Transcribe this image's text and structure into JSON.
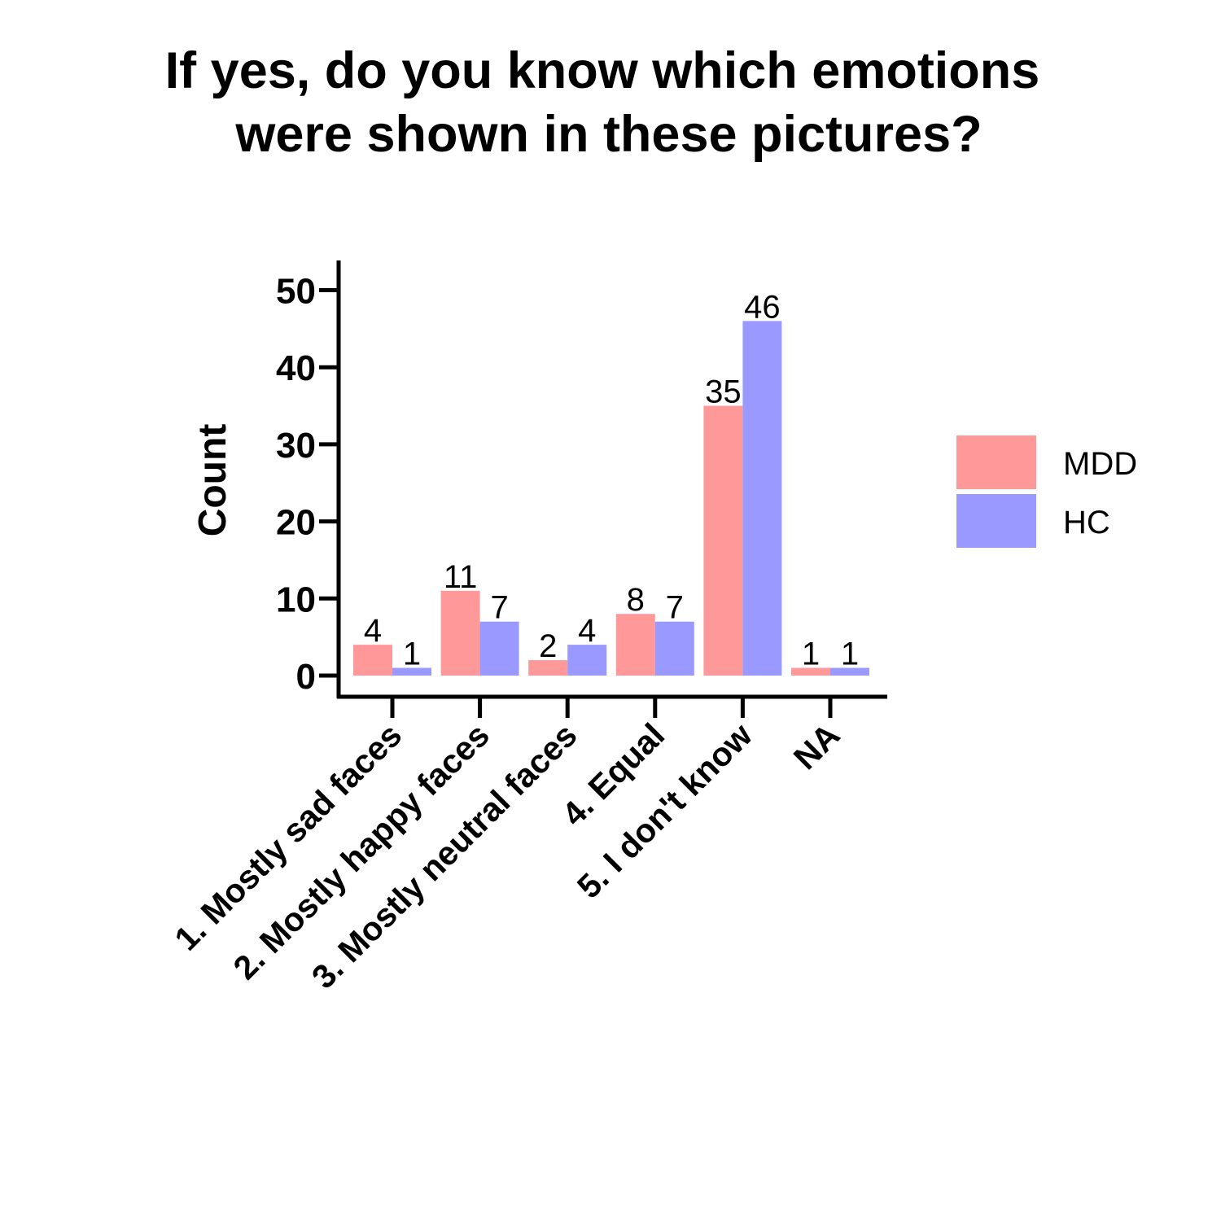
{
  "chart_data": {
    "type": "bar",
    "title_lines": [
      "If yes, do you know which emotions",
      "were shown in these pictures?"
    ],
    "ylabel": "Count",
    "xlabel": "",
    "categories": [
      "1. Mostly sad faces",
      "2. Mostly happy faces",
      "3. Mostly neutral faces",
      "4. Equal",
      "5. I don't know",
      "NA"
    ],
    "series": [
      {
        "name": "MDD",
        "color": "#ff9999",
        "values": [
          4,
          11,
          2,
          8,
          35,
          1
        ]
      },
      {
        "name": "HC",
        "color": "#9999ff",
        "values": [
          1,
          7,
          4,
          7,
          46,
          1
        ]
      }
    ],
    "ylim": [
      0,
      53
    ],
    "yticks": [
      0,
      10,
      20,
      30,
      40,
      50
    ],
    "grid": false,
    "legend_position": "right"
  }
}
